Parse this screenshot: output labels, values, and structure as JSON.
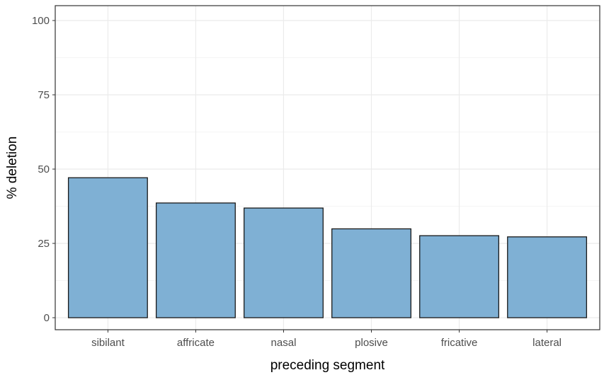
{
  "chart_data": {
    "type": "bar",
    "title": "",
    "xlabel": "preceding segment",
    "ylabel": "% deletion",
    "categories": [
      "sibilant",
      "affricate",
      "nasal",
      "plosive",
      "fricative",
      "lateral"
    ],
    "values": [
      47.1,
      38.6,
      36.9,
      29.9,
      27.6,
      27.2
    ],
    "ylim": [
      0,
      100
    ],
    "yticks": [
      0,
      25,
      50,
      75,
      100
    ],
    "ytick_labels": [
      "0",
      "25",
      "50",
      "75",
      "100"
    ],
    "grid": true,
    "legend": "none",
    "colors": {
      "bar_fill": "#7fb0d4",
      "bar_stroke": "#1a1a1a",
      "grid_major": "#ebebeb",
      "grid_minor": "#f5f5f5",
      "panel_border": "#333333",
      "tick_text": "#4d4d4d",
      "axis_title": "#000000"
    }
  }
}
